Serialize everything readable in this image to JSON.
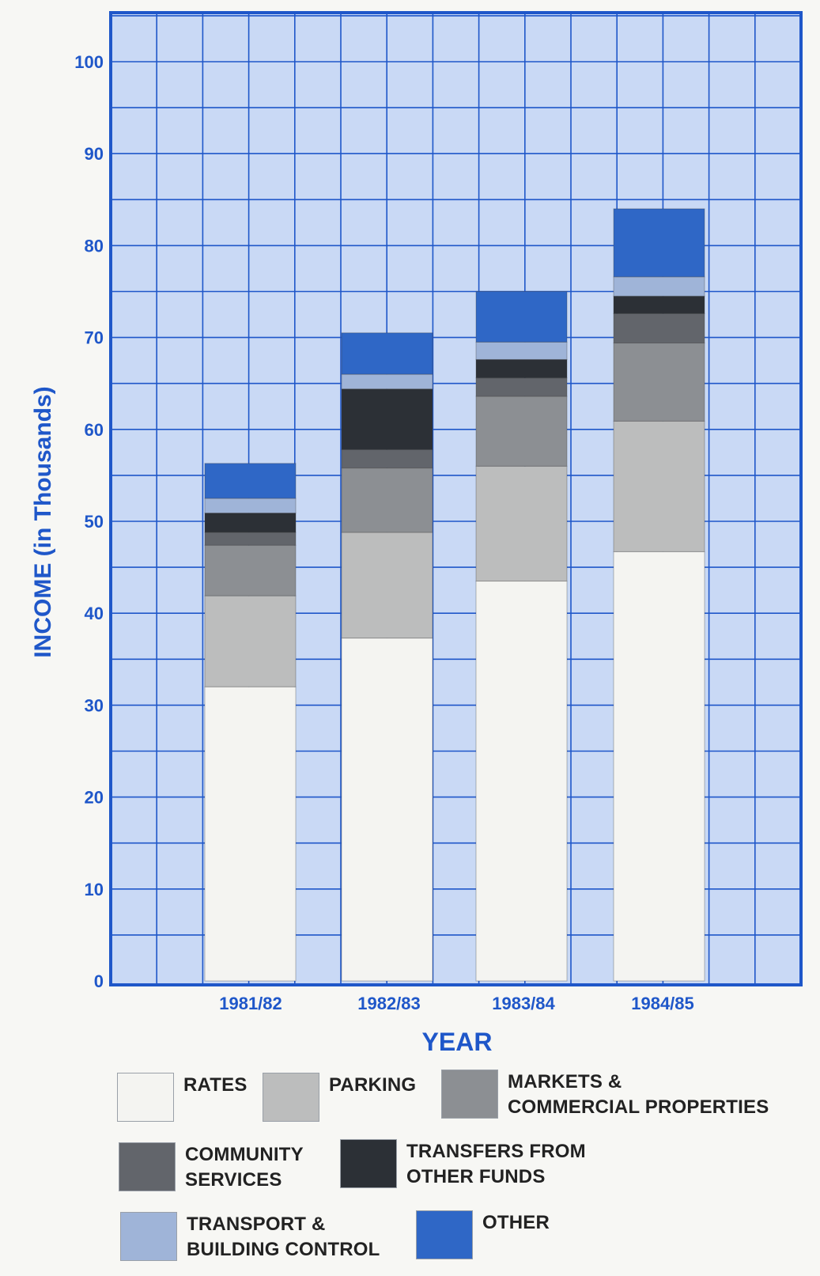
{
  "chart_data": {
    "type": "bar",
    "stacked": true,
    "title": "",
    "xlabel": "YEAR",
    "ylabel": "INCOME (in Thousands)",
    "ylim": [
      0,
      100
    ],
    "yticks": [
      0,
      10,
      20,
      30,
      40,
      50,
      60,
      70,
      80,
      90,
      100
    ],
    "grid": true,
    "legend_position": "bottom",
    "categories": [
      "1981/82",
      "1982/83",
      "1983/84",
      "1984/85"
    ],
    "series": [
      {
        "name": "RATES",
        "color": "#f4f4f1",
        "values": [
          32.0,
          37.3,
          43.5,
          46.7
        ]
      },
      {
        "name": "PARKING",
        "color": "#bcbdbd",
        "values": [
          9.9,
          11.5,
          12.5,
          14.2
        ]
      },
      {
        "name": "MARKETS & COMMERCIAL PROPERTIES",
        "color": "#8c8f93",
        "values": [
          5.5,
          7.0,
          7.6,
          8.5
        ]
      },
      {
        "name": "COMMUNITY SERVICES",
        "color": "#62656b",
        "values": [
          1.4,
          2.0,
          2.0,
          3.2
        ]
      },
      {
        "name": "TRANSFERS FROM OTHER FUNDS",
        "color": "#2c3036",
        "values": [
          2.1,
          6.6,
          2.0,
          1.9
        ]
      },
      {
        "name": "TRANSPORT & BUILDING CONTROL",
        "color": "#9fb4d8",
        "values": [
          1.6,
          1.6,
          1.9,
          2.1
        ]
      },
      {
        "name": "OTHER",
        "color": "#2f67c6",
        "values": [
          3.8,
          4.5,
          5.5,
          7.4
        ]
      }
    ]
  },
  "legend": {
    "items": [
      {
        "label": "RATES"
      },
      {
        "label": "PARKING"
      },
      {
        "label": "MARKETS &\nCOMMERCIAL PROPERTIES"
      },
      {
        "label": "COMMUNITY\nSERVICES"
      },
      {
        "label": "TRANSFERS FROM\nOTHER FUNDS"
      },
      {
        "label": "TRANSPORT &\nBUILDING CONTROL"
      },
      {
        "label": "OTHER"
      }
    ]
  },
  "colors": {
    "plot_background": "#c9d9f5",
    "grid": "#1f57c9",
    "axis_text": "#1f57c9"
  }
}
